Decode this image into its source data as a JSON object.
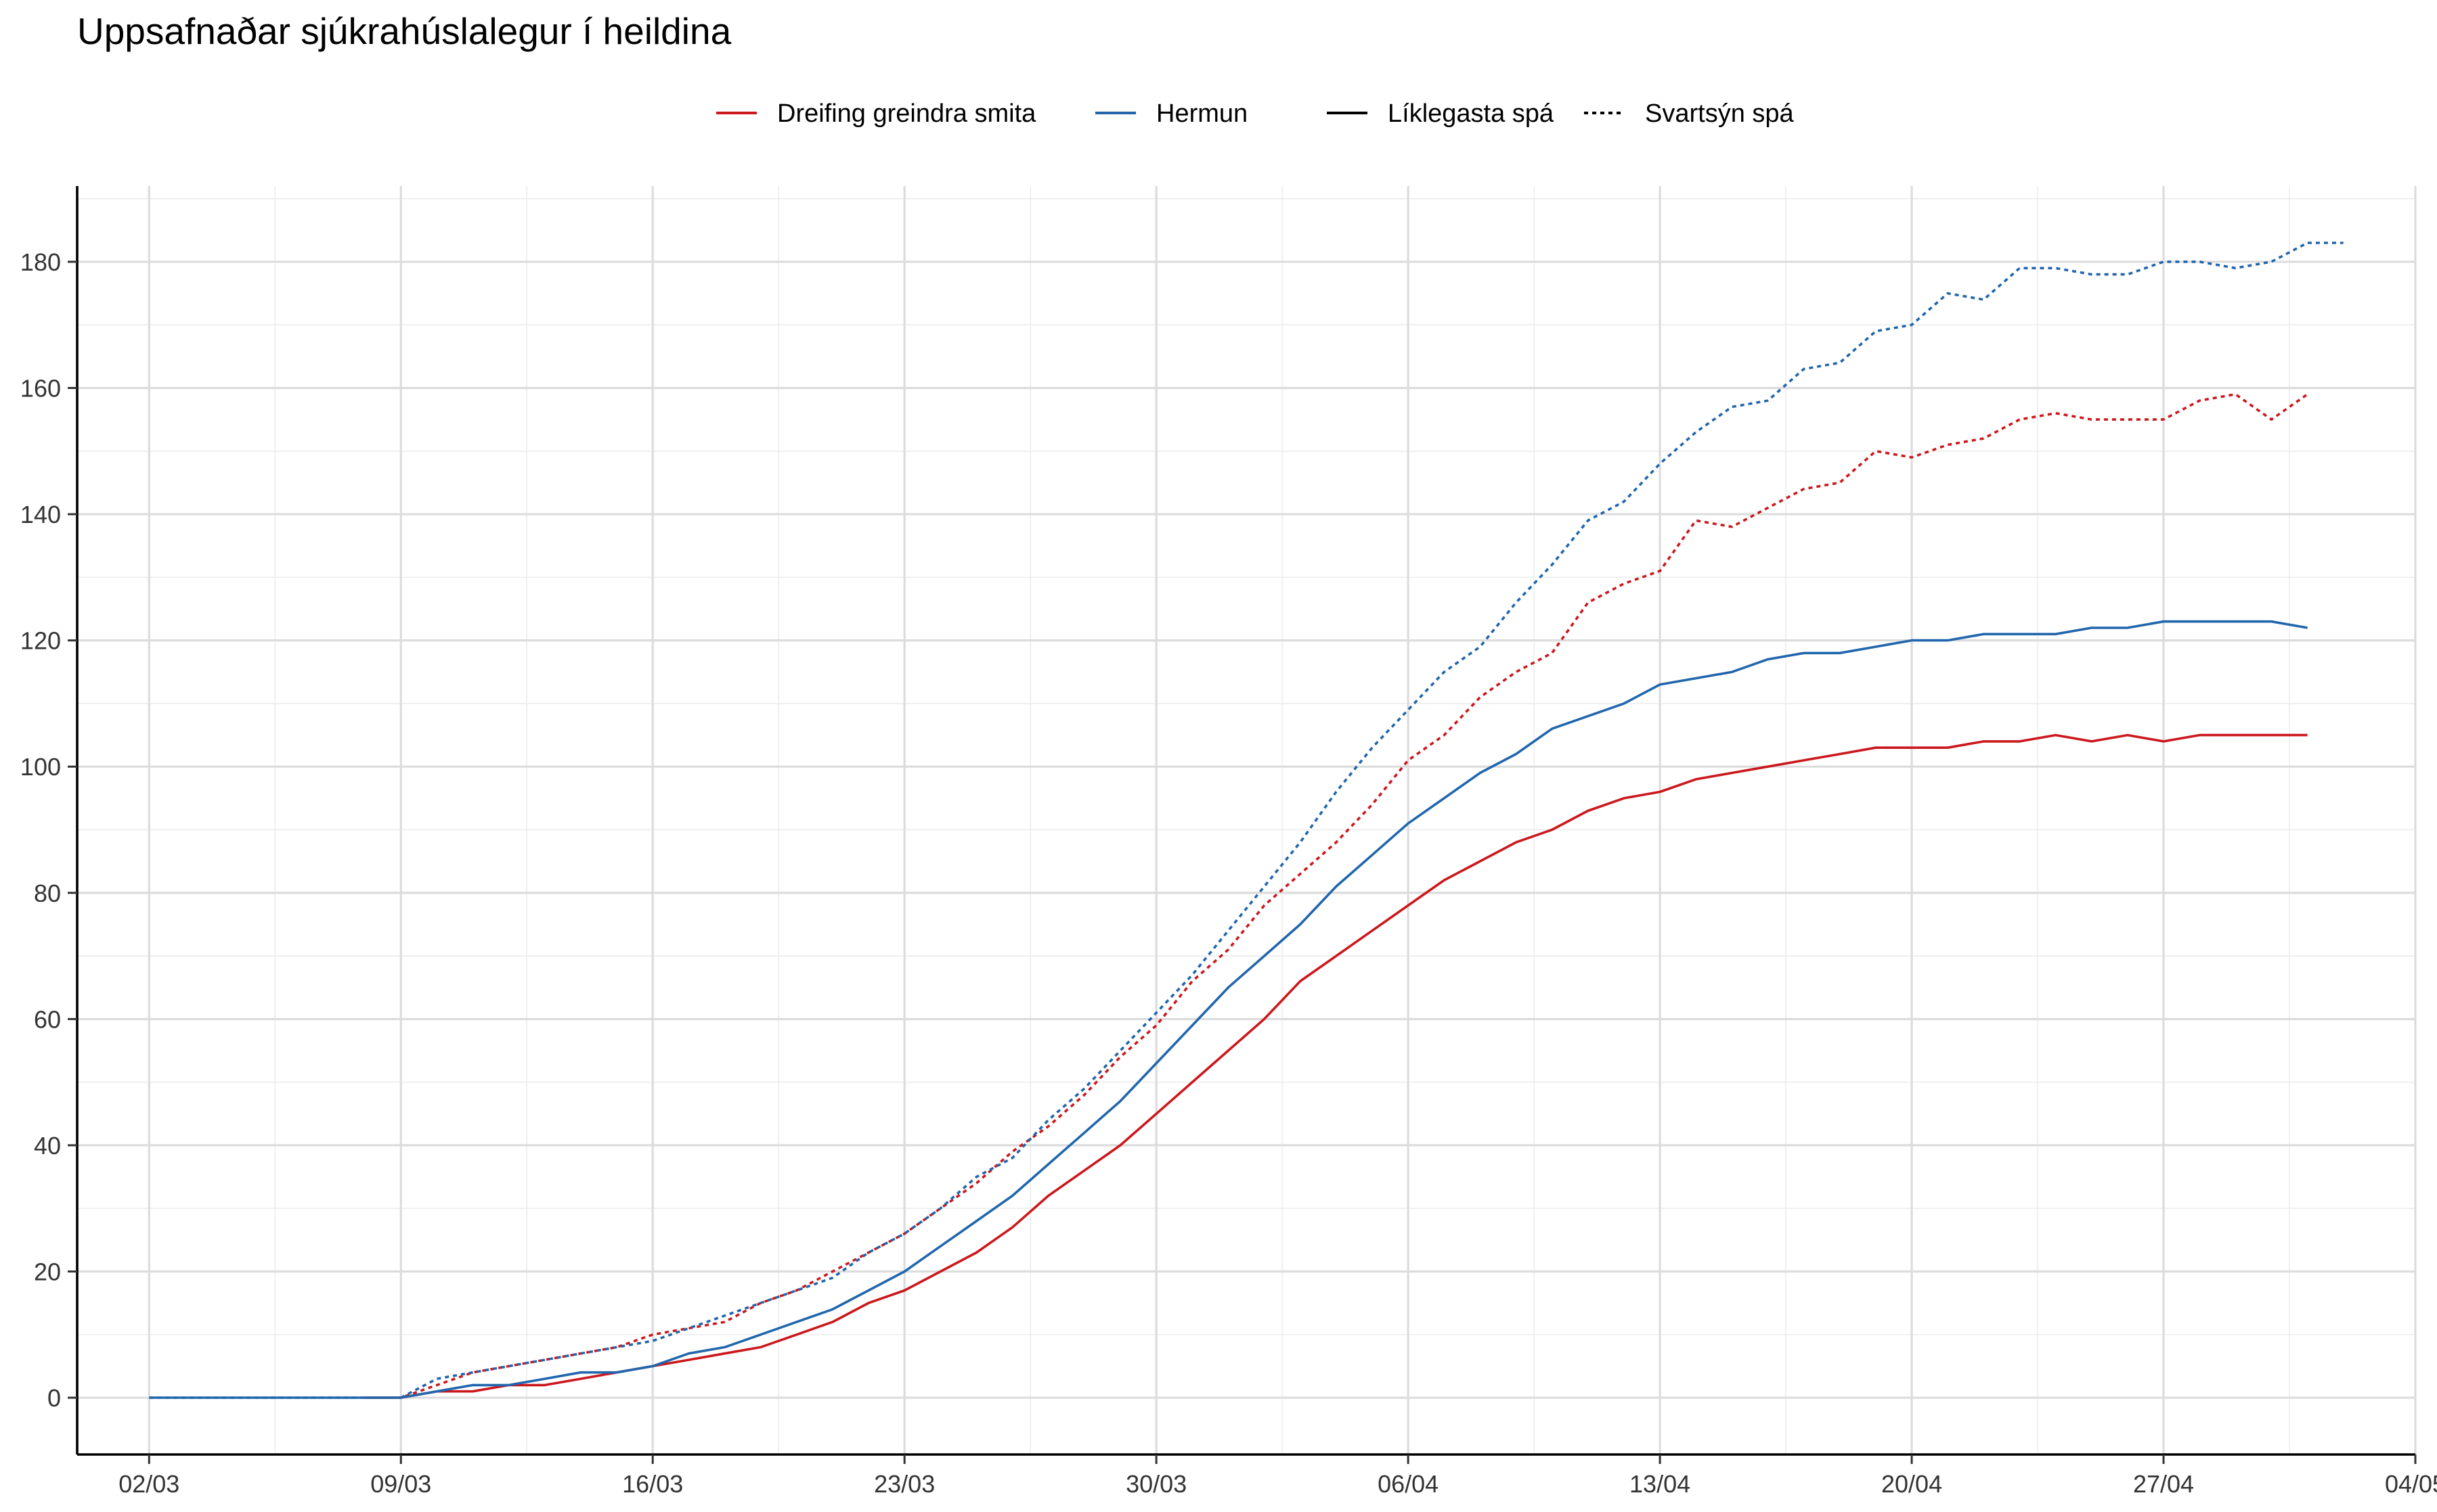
{
  "chart_data": {
    "type": "line",
    "title": "Uppsafnaðar sjúkrahúslalegur í heildina",
    "xlabel": "",
    "ylabel": "",
    "x_axis": {
      "type": "date",
      "range": [
        "2020-02-29",
        "2020-05-04"
      ],
      "tick_dates": [
        "2020-03-02",
        "2020-03-09",
        "2020-03-16",
        "2020-03-23",
        "2020-03-30",
        "2020-04-06",
        "2020-04-13",
        "2020-04-20",
        "2020-04-27",
        "2020-05-04"
      ],
      "tick_labels": [
        "02/03",
        "09/03",
        "16/03",
        "23/03",
        "30/03",
        "06/04",
        "13/04",
        "20/04",
        "27/04",
        "04/05"
      ]
    },
    "y_axis": {
      "range": [
        -9,
        192
      ],
      "ticks": [
        0,
        20,
        40,
        60,
        80,
        100,
        120,
        140,
        160,
        180
      ],
      "tick_labels": [
        "0",
        "20",
        "40",
        "60",
        "80",
        "100",
        "120",
        "140",
        "160",
        "180"
      ]
    },
    "grid": true,
    "legend": {
      "position": "top",
      "color_entries": [
        {
          "label": "Dreifing greindra smita",
          "color": "#CB181D"
        },
        {
          "label": "Hermun",
          "color": "#2166AC"
        }
      ],
      "linetype_entries": [
        {
          "label": "Líklegasta spá",
          "dash": "solid"
        },
        {
          "label": "Svartsýn spá",
          "dash": "dotted"
        }
      ]
    },
    "series": [
      {
        "name": "Dreifing greindra smita",
        "scenario": "Líklegasta spá",
        "color": "#CB181D",
        "dash": "solid",
        "start": "2020-03-08",
        "values": [
          0,
          0,
          1,
          1,
          2,
          2,
          3,
          4,
          5,
          6,
          7,
          8,
          10,
          12,
          15,
          17,
          20,
          23,
          27,
          32,
          36,
          40,
          45,
          50,
          55,
          60,
          66,
          70,
          74,
          78,
          82,
          85,
          88,
          90,
          93,
          95,
          96,
          98,
          99,
          100,
          101,
          102,
          103,
          103,
          103,
          104,
          104,
          105,
          104,
          105,
          104,
          105,
          105,
          105,
          105
        ]
      },
      {
        "name": "Dreifing greindra smita",
        "scenario": "Svartsýn spá",
        "color": "#CB181D",
        "dash": "dotted",
        "start": "2020-03-08",
        "values": [
          0,
          0,
          2,
          4,
          5,
          6,
          7,
          8,
          10,
          11,
          12,
          15,
          17,
          20,
          23,
          26,
          30,
          34,
          39,
          43,
          48,
          54,
          59,
          66,
          71,
          78,
          83,
          88,
          94,
          101,
          105,
          111,
          115,
          118,
          126,
          129,
          131,
          139,
          138,
          141,
          144,
          145,
          150,
          149,
          151,
          152,
          155,
          156,
          155,
          155,
          155,
          158,
          159,
          155,
          159
        ]
      },
      {
        "name": "Hermun",
        "scenario": "Líklegasta spá",
        "color": "#2166AC",
        "dash": "solid",
        "start": "2020-03-02",
        "values": [
          0,
          0,
          0,
          0,
          0,
          0,
          0,
          0,
          1,
          2,
          2,
          3,
          4,
          4,
          5,
          7,
          8,
          10,
          12,
          14,
          17,
          20,
          24,
          28,
          32,
          37,
          42,
          47,
          53,
          59,
          65,
          70,
          75,
          81,
          86,
          91,
          95,
          99,
          102,
          106,
          108,
          110,
          113,
          114,
          115,
          117,
          118,
          118,
          119,
          120,
          120,
          121,
          121,
          121,
          122,
          122,
          123,
          123,
          123,
          123,
          122
        ]
      },
      {
        "name": "Hermun",
        "scenario": "Svartsýn spá",
        "color": "#2166AC",
        "dash": "dotted",
        "start": "2020-03-02",
        "values": [
          0,
          0,
          0,
          0,
          0,
          0,
          0,
          0,
          3,
          4,
          5,
          6,
          7,
          8,
          9,
          11,
          13,
          15,
          17,
          19,
          23,
          26,
          30,
          35,
          38,
          44,
          49,
          55,
          61,
          67,
          74,
          81,
          88,
          96,
          103,
          109,
          115,
          119,
          126,
          132,
          139,
          142,
          148,
          153,
          157,
          158,
          163,
          164,
          169,
          170,
          175,
          174,
          179,
          179,
          178,
          178,
          180,
          180,
          179,
          180,
          183,
          183
        ]
      }
    ]
  }
}
